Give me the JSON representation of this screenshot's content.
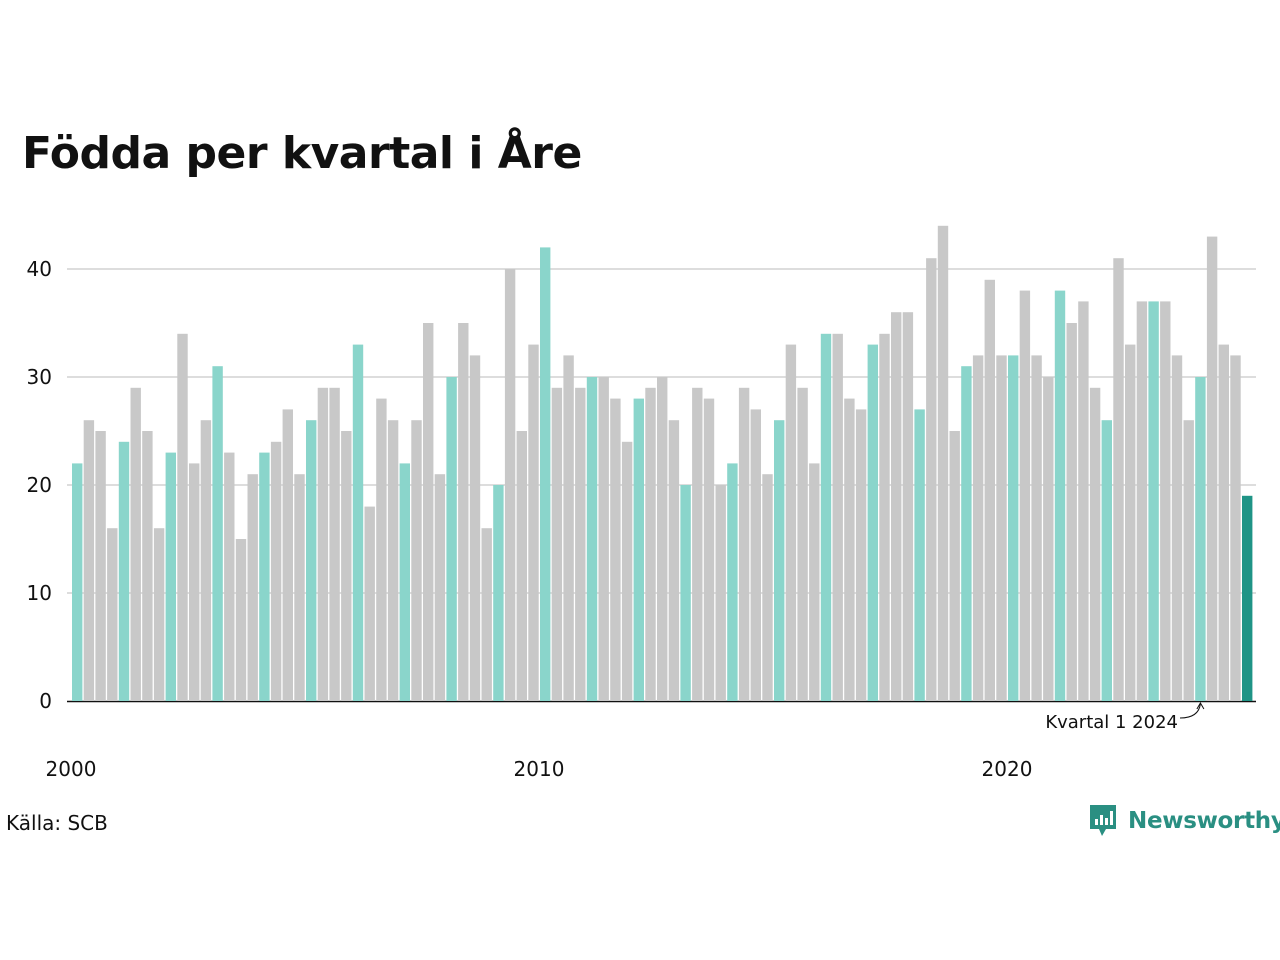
{
  "title": "Födda per kvartal i Åre",
  "source": "Källa: SCB",
  "brand": {
    "name": "Newsworthy",
    "icon": "newsworthy-logo-icon"
  },
  "colors": {
    "q1": "#8ad5cb",
    "other": "#c8c8c8",
    "highlight": "#1f9486",
    "grid": "#dddddd",
    "axis": "#111111"
  },
  "chart_data": {
    "type": "bar",
    "title": "Födda per kvartal i Åre",
    "xlabel": "",
    "ylabel": "",
    "ylim": [
      0,
      45
    ],
    "yticks": [
      0,
      10,
      20,
      30,
      40
    ],
    "x_tick_labels": [
      {
        "label": "2000",
        "index": 0
      },
      {
        "label": "2010",
        "index": 40
      },
      {
        "label": "2020",
        "index": 80
      }
    ],
    "start": {
      "year": 2000,
      "quarter": 1
    },
    "values": [
      22,
      26,
      25,
      16,
      24,
      29,
      25,
      16,
      23,
      34,
      22,
      26,
      31,
      23,
      15,
      21,
      23,
      24,
      27,
      21,
      26,
      29,
      29,
      25,
      33,
      18,
      28,
      26,
      22,
      26,
      35,
      21,
      30,
      35,
      32,
      16,
      20,
      40,
      25,
      33,
      42,
      29,
      32,
      29,
      30,
      30,
      28,
      24,
      28,
      29,
      30,
      26,
      20,
      29,
      28,
      20,
      22,
      29,
      27,
      21,
      26,
      33,
      29,
      22,
      34,
      34,
      28,
      27,
      33,
      34,
      36,
      36,
      27,
      41,
      44,
      25,
      31,
      32,
      39,
      32,
      32,
      38,
      32,
      30,
      38,
      35,
      37,
      29,
      26,
      41,
      33,
      37,
      37,
      37,
      32,
      26,
      30,
      43,
      33,
      32,
      19
    ],
    "grid": true,
    "annotation": {
      "text": "Kvartal 1 2024",
      "index": 96
    }
  }
}
